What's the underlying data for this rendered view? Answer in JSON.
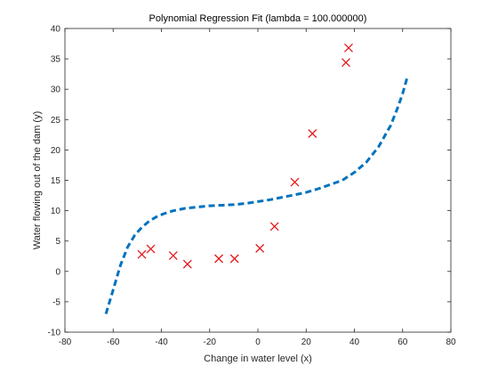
{
  "chart_data": {
    "type": "scatter",
    "title": "Polynomial Regression Fit (lambda = 100.000000)",
    "xlabel": "Change in water level (x)",
    "ylabel": "Water flowing out of the dam (y)",
    "xlim": [
      -80,
      80
    ],
    "ylim": [
      -10,
      40
    ],
    "xticks": [
      -80,
      -60,
      -40,
      -20,
      0,
      20,
      40,
      60,
      80
    ],
    "yticks": [
      -10,
      -5,
      0,
      5,
      10,
      15,
      20,
      25,
      30,
      35,
      40
    ],
    "grid": false,
    "legend": "none",
    "series": [
      {
        "kind": "scatter",
        "marker": "x",
        "color": "#e41a1c",
        "points": [
          [
            -48.1,
            2.8
          ],
          [
            -44.4,
            3.7
          ],
          [
            -35.1,
            2.6
          ],
          [
            -29.2,
            1.2
          ],
          [
            -16.2,
            2.1
          ],
          [
            -9.7,
            2.1
          ],
          [
            0.8,
            3.8
          ],
          [
            6.9,
            7.4
          ],
          [
            15.3,
            14.7
          ],
          [
            22.6,
            22.7
          ],
          [
            36.5,
            34.4
          ],
          [
            37.6,
            36.8
          ]
        ]
      },
      {
        "kind": "line",
        "style": "dashed",
        "color": "#0072bd",
        "points": [
          [
            -63,
            -7.0
          ],
          [
            -60,
            -3.0
          ],
          [
            -57,
            1.0
          ],
          [
            -54,
            4.0
          ],
          [
            -51,
            6.0
          ],
          [
            -48,
            7.3
          ],
          [
            -45,
            8.3
          ],
          [
            -42,
            9.0
          ],
          [
            -39,
            9.5
          ],
          [
            -35,
            10.0
          ],
          [
            -30,
            10.4
          ],
          [
            -25,
            10.6
          ],
          [
            -20,
            10.8
          ],
          [
            -15,
            10.9
          ],
          [
            -10,
            11.0
          ],
          [
            -5,
            11.2
          ],
          [
            0,
            11.5
          ],
          [
            5,
            11.8
          ],
          [
            10,
            12.2
          ],
          [
            15,
            12.6
          ],
          [
            20,
            13.0
          ],
          [
            25,
            13.6
          ],
          [
            30,
            14.3
          ],
          [
            35,
            15.0
          ],
          [
            40,
            16.3
          ],
          [
            45,
            18.0
          ],
          [
            50,
            20.5
          ],
          [
            55,
            24.0
          ],
          [
            58,
            27.0
          ],
          [
            60,
            29.3
          ],
          [
            62,
            32.1
          ]
        ]
      }
    ]
  }
}
